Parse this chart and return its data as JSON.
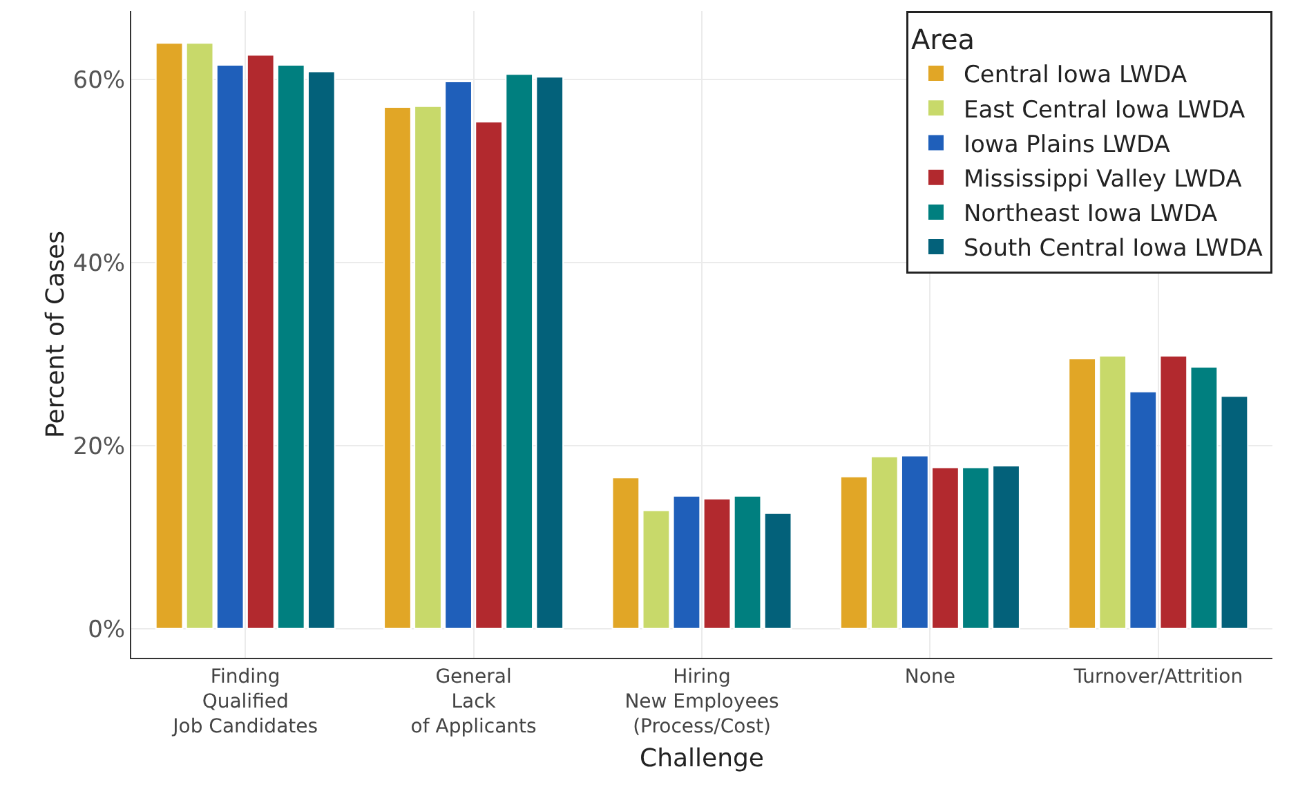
{
  "chart_data": {
    "type": "bar",
    "xlabel": "Challenge",
    "ylabel": "Percent of Cases",
    "legend_title": "Area",
    "categories": [
      "Finding\nQualified\nJob Candidates",
      "General\nLack\nof Applicants",
      "Hiring\nNew Employees\n(Process/Cost)",
      "None",
      "Turnover/Attrition"
    ],
    "series": [
      {
        "name": "Central Iowa LWDA",
        "color": "#e1a626",
        "values": [
          64.0,
          57.0,
          16.5,
          16.6,
          29.5
        ]
      },
      {
        "name": "East Central Iowa LWDA",
        "color": "#c8d96a",
        "values": [
          64.0,
          57.1,
          12.9,
          18.8,
          29.8
        ]
      },
      {
        "name": "Iowa Plains LWDA",
        "color": "#1f5fba",
        "values": [
          61.6,
          59.8,
          14.5,
          18.9,
          25.9
        ]
      },
      {
        "name": "Mississippi Valley LWDA",
        "color": "#b2292e",
        "values": [
          62.7,
          55.4,
          14.2,
          17.6,
          29.8
        ]
      },
      {
        "name": "Northeast Iowa LWDA",
        "color": "#007f7f",
        "values": [
          61.6,
          60.6,
          14.5,
          17.6,
          28.6
        ]
      },
      {
        "name": "South Central Iowa LWDA",
        "color": "#03617a",
        "values": [
          60.9,
          60.3,
          12.6,
          17.8,
          25.4
        ]
      }
    ],
    "ylim": [
      -3.2,
      67.5
    ],
    "yticks": [
      {
        "value": 0,
        "label": "0%"
      },
      {
        "value": 20,
        "label": "20%"
      },
      {
        "value": 40,
        "label": "40%"
      },
      {
        "value": 60,
        "label": "60%"
      }
    ],
    "grid": true,
    "legend": "top right"
  }
}
